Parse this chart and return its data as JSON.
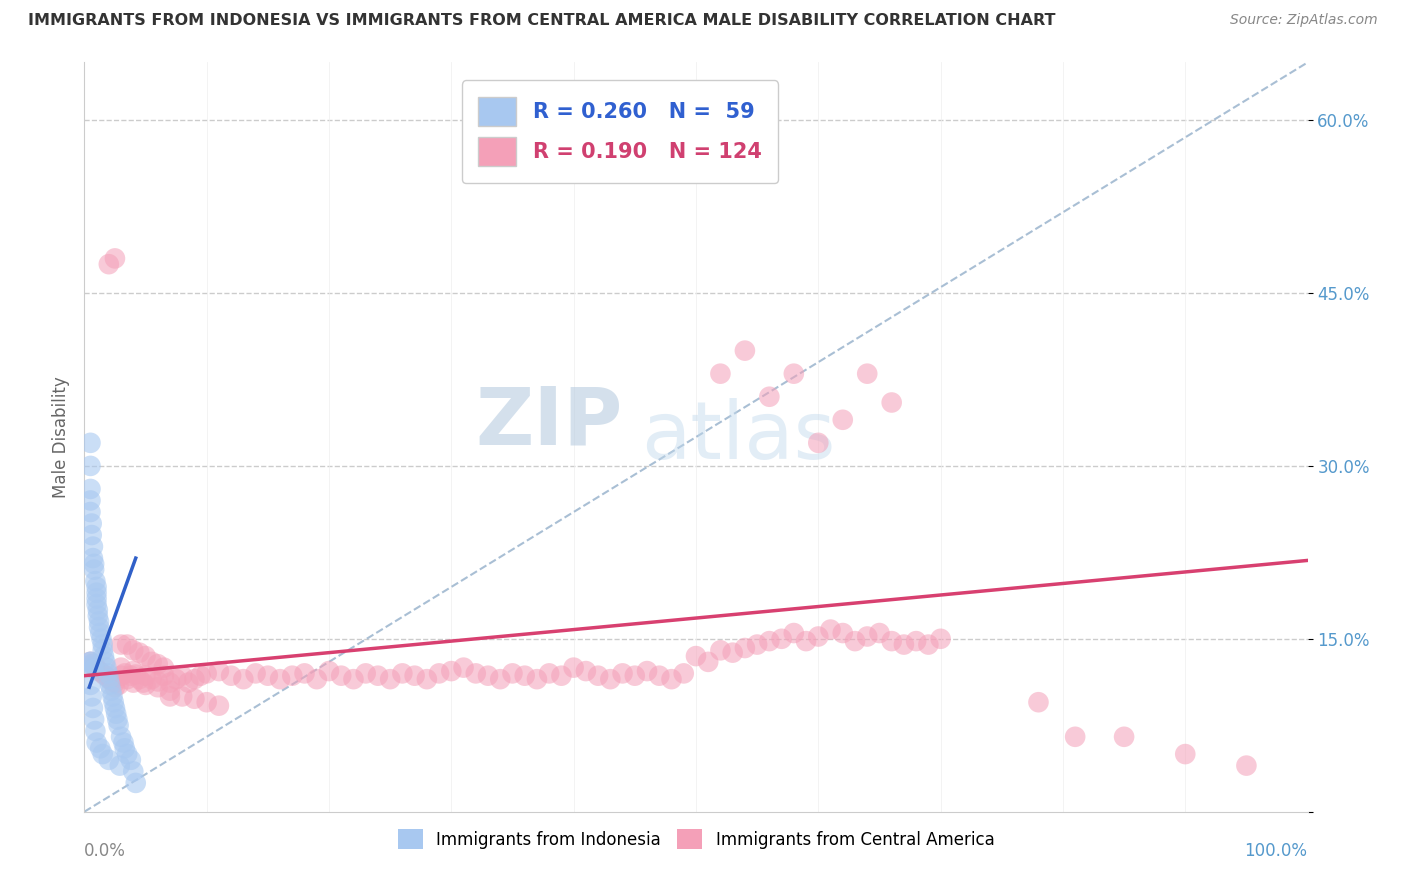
{
  "title": "IMMIGRANTS FROM INDONESIA VS IMMIGRANTS FROM CENTRAL AMERICA MALE DISABILITY CORRELATION CHART",
  "source": "Source: ZipAtlas.com",
  "ylabel": "Male Disability",
  "y_ticks": [
    0.0,
    0.15,
    0.3,
    0.45,
    0.6
  ],
  "y_tick_labels": [
    "",
    "15.0%",
    "30.0%",
    "45.0%",
    "60.0%"
  ],
  "xlim": [
    0.0,
    1.0
  ],
  "ylim": [
    0.0,
    0.65
  ],
  "R_indonesia": 0.26,
  "N_indonesia": 59,
  "R_central_america": 0.19,
  "N_central_america": 124,
  "color_indonesia": "#a8c8f0",
  "color_central_america": "#f4a0b8",
  "line_color_indonesia": "#3060c8",
  "line_color_central_america": "#d84070",
  "diagonal_color": "#a0b8d0",
  "legend_label_indonesia": "Immigrants from Indonesia",
  "legend_label_central_america": "Immigrants from Central America",
  "watermark_zip": "ZIP",
  "watermark_atlas": "atlas",
  "background_color": "#ffffff",
  "indo_x": [
    0.005,
    0.005,
    0.005,
    0.005,
    0.005,
    0.005,
    0.005,
    0.006,
    0.006,
    0.006,
    0.007,
    0.007,
    0.007,
    0.008,
    0.008,
    0.008,
    0.009,
    0.009,
    0.01,
    0.01,
    0.01,
    0.01,
    0.01,
    0.011,
    0.011,
    0.012,
    0.012,
    0.013,
    0.013,
    0.014,
    0.015,
    0.015,
    0.015,
    0.016,
    0.017,
    0.018,
    0.019,
    0.02,
    0.02,
    0.021,
    0.022,
    0.023,
    0.024,
    0.025,
    0.026,
    0.027,
    0.028,
    0.029,
    0.03,
    0.032,
    0.033,
    0.035,
    0.038,
    0.04,
    0.042,
    0.005,
    0.006,
    0.007,
    0.008
  ],
  "indo_y": [
    0.32,
    0.3,
    0.28,
    0.27,
    0.26,
    0.13,
    0.11,
    0.25,
    0.24,
    0.1,
    0.23,
    0.22,
    0.09,
    0.215,
    0.21,
    0.08,
    0.2,
    0.07,
    0.195,
    0.19,
    0.185,
    0.18,
    0.06,
    0.175,
    0.17,
    0.165,
    0.16,
    0.155,
    0.055,
    0.15,
    0.145,
    0.14,
    0.05,
    0.135,
    0.13,
    0.125,
    0.12,
    0.115,
    0.045,
    0.11,
    0.105,
    0.1,
    0.095,
    0.09,
    0.085,
    0.08,
    0.075,
    0.04,
    0.065,
    0.06,
    0.055,
    0.05,
    0.045,
    0.035,
    0.025,
    0.13,
    0.128,
    0.126,
    0.124
  ],
  "ca_x": [
    0.005,
    0.007,
    0.009,
    0.01,
    0.012,
    0.015,
    0.017,
    0.02,
    0.022,
    0.025,
    0.028,
    0.03,
    0.033,
    0.035,
    0.038,
    0.04,
    0.042,
    0.045,
    0.048,
    0.05,
    0.055,
    0.06,
    0.065,
    0.07,
    0.075,
    0.08,
    0.085,
    0.09,
    0.095,
    0.1,
    0.11,
    0.12,
    0.13,
    0.14,
    0.15,
    0.16,
    0.17,
    0.18,
    0.19,
    0.2,
    0.21,
    0.22,
    0.23,
    0.24,
    0.25,
    0.26,
    0.27,
    0.28,
    0.29,
    0.3,
    0.31,
    0.32,
    0.33,
    0.34,
    0.35,
    0.36,
    0.37,
    0.38,
    0.39,
    0.4,
    0.41,
    0.42,
    0.43,
    0.44,
    0.45,
    0.46,
    0.47,
    0.48,
    0.49,
    0.5,
    0.51,
    0.52,
    0.53,
    0.54,
    0.55,
    0.56,
    0.57,
    0.58,
    0.59,
    0.6,
    0.61,
    0.62,
    0.63,
    0.64,
    0.65,
    0.66,
    0.67,
    0.68,
    0.69,
    0.7,
    0.52,
    0.54,
    0.56,
    0.58,
    0.6,
    0.62,
    0.64,
    0.66,
    0.02,
    0.025,
    0.03,
    0.035,
    0.04,
    0.045,
    0.05,
    0.055,
    0.06,
    0.065,
    0.07,
    0.78,
    0.81,
    0.85,
    0.9,
    0.95,
    0.025,
    0.03,
    0.04,
    0.05,
    0.06,
    0.07,
    0.08,
    0.09,
    0.1,
    0.11
  ],
  "ca_y": [
    0.13,
    0.128,
    0.126,
    0.124,
    0.122,
    0.12,
    0.118,
    0.116,
    0.114,
    0.112,
    0.11,
    0.125,
    0.12,
    0.115,
    0.118,
    0.122,
    0.119,
    0.115,
    0.112,
    0.118,
    0.115,
    0.113,
    0.118,
    0.112,
    0.115,
    0.118,
    0.112,
    0.115,
    0.118,
    0.12,
    0.122,
    0.118,
    0.115,
    0.12,
    0.118,
    0.115,
    0.118,
    0.12,
    0.115,
    0.122,
    0.118,
    0.115,
    0.12,
    0.118,
    0.115,
    0.12,
    0.118,
    0.115,
    0.12,
    0.122,
    0.125,
    0.12,
    0.118,
    0.115,
    0.12,
    0.118,
    0.115,
    0.12,
    0.118,
    0.125,
    0.122,
    0.118,
    0.115,
    0.12,
    0.118,
    0.122,
    0.118,
    0.115,
    0.12,
    0.135,
    0.13,
    0.14,
    0.138,
    0.142,
    0.145,
    0.148,
    0.15,
    0.155,
    0.148,
    0.152,
    0.158,
    0.155,
    0.148,
    0.152,
    0.155,
    0.148,
    0.145,
    0.148,
    0.145,
    0.15,
    0.38,
    0.4,
    0.36,
    0.38,
    0.32,
    0.34,
    0.38,
    0.355,
    0.475,
    0.48,
    0.145,
    0.145,
    0.14,
    0.138,
    0.135,
    0.13,
    0.128,
    0.125,
    0.1,
    0.095,
    0.065,
    0.065,
    0.05,
    0.04,
    0.108,
    0.118,
    0.112,
    0.11,
    0.108,
    0.105,
    0.1,
    0.098,
    0.095,
    0.092
  ],
  "indo_trend_x": [
    0.004,
    0.042
  ],
  "indo_trend_y": [
    0.108,
    0.22
  ],
  "ca_trend_x": [
    0.0,
    1.0
  ],
  "ca_trend_y": [
    0.118,
    0.218
  ]
}
